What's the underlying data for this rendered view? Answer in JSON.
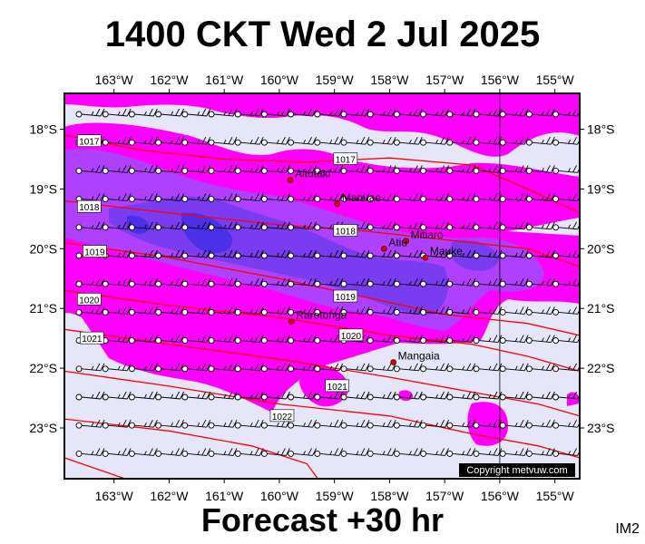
{
  "header": {
    "title": "1400 CKT Wed 2 Jul 2025"
  },
  "footer": {
    "forecast": "Forecast +30 hr",
    "code": "IM2"
  },
  "map": {
    "lon_range": [
      -163.9,
      -154.55
    ],
    "lat_range": [
      -23.85,
      -17.4
    ],
    "lon_ticks": [
      {
        "lon": -163,
        "label": "163°W"
      },
      {
        "lon": -162,
        "label": "162°W"
      },
      {
        "lon": -161,
        "label": "161°W"
      },
      {
        "lon": -160,
        "label": "160°W"
      },
      {
        "lon": -159,
        "label": "159°W"
      },
      {
        "lon": -158,
        "label": "158°W"
      },
      {
        "lon": -157,
        "label": "157°W"
      },
      {
        "lon": -156,
        "label": "156°W"
      },
      {
        "lon": -155,
        "label": "155°W"
      }
    ],
    "lat_ticks": [
      {
        "lat": -18,
        "label": "18°S"
      },
      {
        "lat": -19,
        "label": "19°S"
      },
      {
        "lat": -20,
        "label": "20°S"
      },
      {
        "lat": -21,
        "label": "21°S"
      },
      {
        "lat": -22,
        "label": "22°S"
      },
      {
        "lat": -23,
        "label": "23°S"
      }
    ],
    "reference_meridian": -156,
    "places": [
      {
        "name": "Aitutaki",
        "lon": -159.8,
        "lat": -18.85
      },
      {
        "name": "Manuae",
        "lon": -158.95,
        "lat": -19.25
      },
      {
        "name": "Mitiaro",
        "lon": -157.7,
        "lat": -19.87
      },
      {
        "name": "Atiu",
        "lon": -158.1,
        "lat": -20.0
      },
      {
        "name": "Mauke",
        "lon": -157.35,
        "lat": -20.15
      },
      {
        "name": "Rarotonga",
        "lon": -159.78,
        "lat": -21.22
      },
      {
        "name": "Mangaia",
        "lon": -157.93,
        "lat": -21.9
      }
    ],
    "isobars": [
      {
        "label": "1017",
        "points": [
          [
            -163.9,
            -18.1
          ],
          [
            -162.5,
            -18.35
          ],
          [
            -161,
            -18.5
          ],
          [
            -159.5,
            -18.55
          ],
          [
            -158,
            -18.48
          ],
          [
            -156.5,
            -18.6
          ],
          [
            -155.5,
            -19.0
          ],
          [
            -154.55,
            -19.4
          ]
        ],
        "labels": [
          {
            "lon": -163.45,
            "lat": -18.2
          },
          {
            "lon": -158.8,
            "lat": -18.5
          }
        ]
      },
      {
        "label": "1018",
        "points": [
          [
            -163.9,
            -19.2
          ],
          [
            -162,
            -19.4
          ],
          [
            -160,
            -19.6
          ],
          [
            -158.5,
            -19.7
          ],
          [
            -157,
            -19.85
          ],
          [
            -155.5,
            -20.0
          ],
          [
            -154.55,
            -20.3
          ]
        ],
        "labels": [
          {
            "lon": -163.45,
            "lat": -19.3
          },
          {
            "lon": -158.8,
            "lat": -19.7
          }
        ]
      },
      {
        "label": "1019",
        "points": [
          [
            -163.9,
            -19.9
          ],
          [
            -162,
            -20.15
          ],
          [
            -160,
            -20.5
          ],
          [
            -158.5,
            -20.8
          ],
          [
            -157,
            -21.1
          ],
          [
            -155.5,
            -21.25
          ],
          [
            -154.55,
            -21.45
          ]
        ],
        "labels": [
          {
            "lon": -163.35,
            "lat": -20.05
          },
          {
            "lon": -158.8,
            "lat": -20.8
          }
        ]
      },
      {
        "label": "1020",
        "points": [
          [
            -163.9,
            -20.7
          ],
          [
            -162,
            -20.95
          ],
          [
            -160,
            -21.15
          ],
          [
            -158,
            -21.45
          ],
          [
            -156.5,
            -21.6
          ],
          [
            -155.5,
            -21.8
          ],
          [
            -154.55,
            -22.05
          ]
        ],
        "labels": [
          {
            "lon": -163.45,
            "lat": -20.85
          },
          {
            "lon": -158.7,
            "lat": -21.45
          }
        ]
      },
      {
        "label": "1021",
        "points": [
          [
            -163.9,
            -21.35
          ],
          [
            -162,
            -21.6
          ],
          [
            -160,
            -21.85
          ],
          [
            -158,
            -22.15
          ],
          [
            -156.5,
            -22.4
          ],
          [
            -155.3,
            -22.6
          ],
          [
            -154.55,
            -22.8
          ]
        ],
        "labels": [
          {
            "lon": -163.4,
            "lat": -21.5
          },
          {
            "lon": -158.95,
            "lat": -22.3
          }
        ]
      },
      {
        "label": "1022",
        "points": [
          [
            -163.9,
            -22.05
          ],
          [
            -162,
            -22.3
          ],
          [
            -160,
            -22.6
          ],
          [
            -158,
            -22.8
          ],
          [
            -156.5,
            -23.1
          ],
          [
            -155.3,
            -23.3
          ],
          [
            -154.55,
            -23.5
          ]
        ],
        "labels": [
          {
            "lon": -159.95,
            "lat": -22.8
          }
        ]
      },
      {
        "label": "",
        "points": [
          [
            -163.9,
            -22.85
          ],
          [
            -162,
            -23.05
          ],
          [
            -160.5,
            -23.3
          ],
          [
            -159.5,
            -23.6
          ],
          [
            -159.3,
            -23.85
          ]
        ],
        "labels": []
      },
      {
        "label": "",
        "points": [
          [
            -163.9,
            -23.5
          ],
          [
            -162.8,
            -23.85
          ]
        ],
        "labels": []
      }
    ],
    "colors": {
      "background": "#e6e6fa",
      "rain_light": "#ff00ff",
      "rain_medium": "#b040ff",
      "rain_heavy": "#7a3cf0",
      "rain_heaviest": "#4c2fe8",
      "isobar": "#ff0000",
      "place_marker": "#e00000"
    }
  },
  "copyright": "Copyright metvuw.com"
}
